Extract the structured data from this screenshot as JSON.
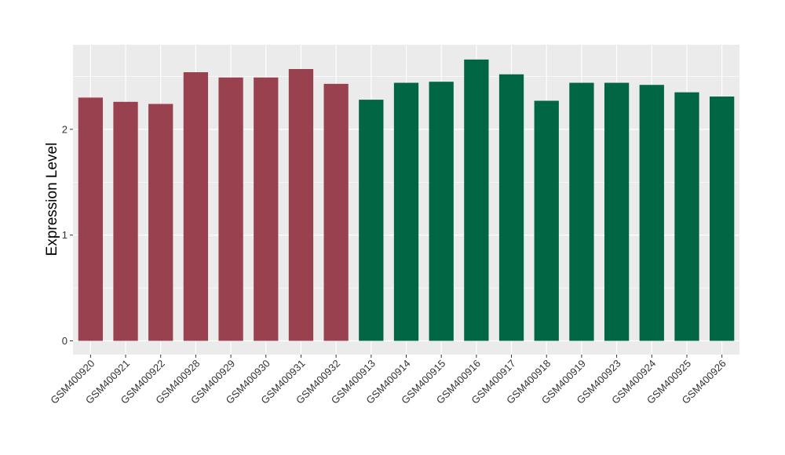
{
  "chart_data": {
    "type": "bar",
    "title": "",
    "xlabel": "",
    "ylabel": "Expression Level",
    "ylim": [
      -0.13,
      2.8
    ],
    "yticks": [
      0,
      1,
      2
    ],
    "grid": true,
    "legend": "none",
    "categories": [
      "GSM400920",
      "GSM400921",
      "GSM400922",
      "GSM400928",
      "GSM400929",
      "GSM400930",
      "GSM400931",
      "GSM400932",
      "GSM400913",
      "GSM400914",
      "GSM400915",
      "GSM400916",
      "GSM400917",
      "GSM400918",
      "GSM400919",
      "GSM400923",
      "GSM400924",
      "GSM400925",
      "GSM400926"
    ],
    "values": [
      2.3,
      2.26,
      2.24,
      2.54,
      2.49,
      2.49,
      2.57,
      2.43,
      2.28,
      2.44,
      2.45,
      2.66,
      2.52,
      2.27,
      2.44,
      2.44,
      2.42,
      2.35,
      2.31
    ],
    "bar_colors": [
      "#9a4150",
      "#9a4150",
      "#9a4150",
      "#9a4150",
      "#9a4150",
      "#9a4150",
      "#9a4150",
      "#9a4150",
      "#006644",
      "#006644",
      "#006644",
      "#006644",
      "#006644",
      "#006644",
      "#006644",
      "#006644",
      "#006644",
      "#006644",
      "#006644"
    ],
    "panel_background": "#ebebeb",
    "grid_color": "#ffffff"
  }
}
